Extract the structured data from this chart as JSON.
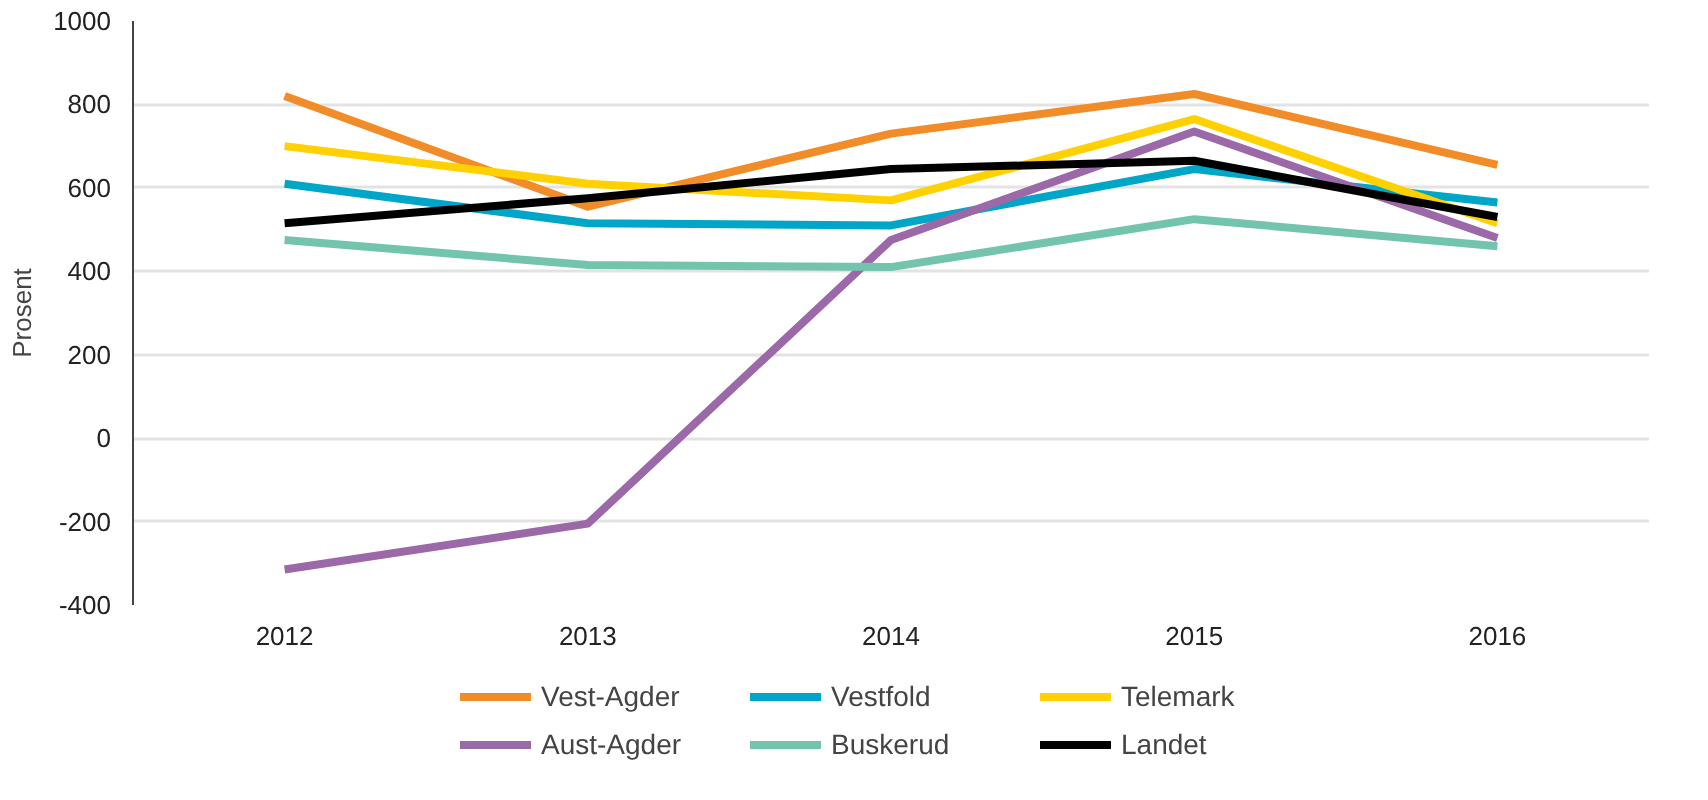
{
  "chart_data": {
    "type": "line",
    "ylabel": "Prosent",
    "categories": [
      "2012",
      "2013",
      "2014",
      "2015",
      "2016"
    ],
    "ylim": [
      -400,
      1000
    ],
    "yticks": [
      -400,
      -200,
      0,
      200,
      400,
      600,
      800,
      1000
    ],
    "grid": "y",
    "legend": "bottom",
    "line_style": "solid",
    "marker": "none",
    "series": [
      {
        "name": "Vest-Agder",
        "color": "#f28c28",
        "values": [
          820,
          555,
          730,
          825,
          655
        ]
      },
      {
        "name": "Vestfold",
        "color": "#00a6c8",
        "values": [
          610,
          515,
          510,
          645,
          565
        ]
      },
      {
        "name": "Telemark",
        "color": "#ffd100",
        "values": [
          700,
          610,
          570,
          765,
          515
        ]
      },
      {
        "name": "Aust-Agder",
        "color": "#9b68a8",
        "values": [
          -315,
          -205,
          475,
          735,
          480
        ]
      },
      {
        "name": "Buskerud",
        "color": "#72c4ad",
        "values": [
          475,
          415,
          410,
          525,
          460
        ]
      },
      {
        "name": "Landet",
        "color": "#000000",
        "values": [
          515,
          575,
          645,
          665,
          530
        ]
      }
    ]
  }
}
